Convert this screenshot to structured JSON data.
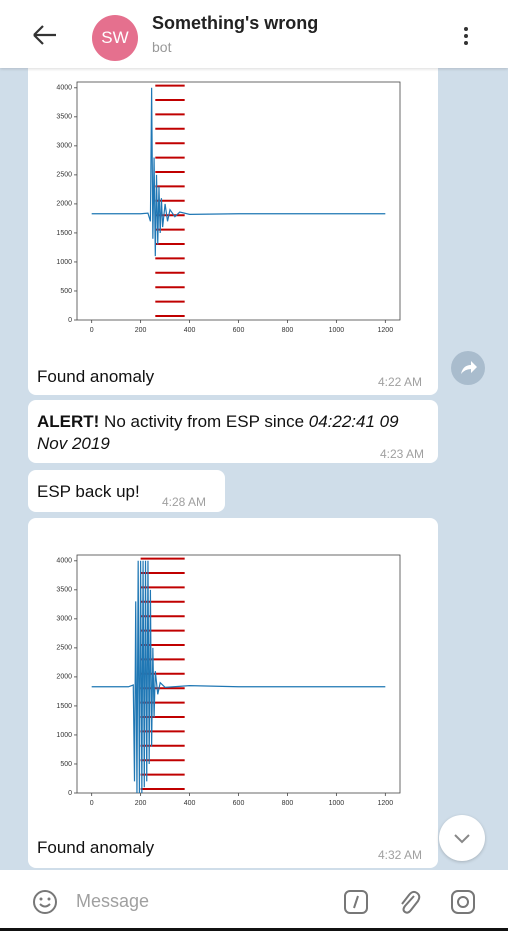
{
  "header": {
    "title": "Something's wrong",
    "subtitle": "bot",
    "avatar": "SW"
  },
  "messages": [
    {
      "chart_data": {
        "type": "line",
        "series": [
          {
            "color": "#1f77b4",
            "x": [
              0,
              100,
              200,
              230,
              240,
              245,
              250,
              255,
              260,
              265,
              270,
              275,
              280,
              285,
              290,
              300,
              310,
              320,
              340,
              360,
              400,
              600,
              800,
              1000,
              1200
            ],
            "values": [
              1830,
              1830,
              1830,
              1840,
              1700,
              4000,
              1400,
              2800,
              1100,
              2500,
              1300,
              2300,
              1500,
              2100,
              1600,
              2000,
              1700,
              1900,
              1780,
              1860,
              1820,
              1830,
              1830,
              1830,
              1830
            ]
          }
        ],
        "highlight": [
          260,
          380
        ],
        "highlight_color": "#c00000",
        "xlim": [
          -60,
          1260
        ],
        "ylim": [
          0,
          4100
        ],
        "xticks": [
          0,
          200,
          400,
          600,
          800,
          1000,
          1200
        ],
        "yticks": [
          0,
          500,
          1000,
          1500,
          2000,
          2500,
          3000,
          3500,
          4000
        ]
      },
      "caption": "Found anomaly",
      "time": "4:22 AM"
    },
    {
      "bold": "ALERT!",
      "text": " No activity from ESP since ",
      "italic": "04:22:41 09 Nov 2019",
      "time": "4:23 AM"
    },
    {
      "text": "ESP back up!",
      "time": "4:28 AM"
    },
    {
      "chart_data": {
        "type": "line",
        "series": [
          {
            "color": "#1f77b4",
            "x": [
              0,
              150,
              170,
              175,
              180,
              185,
              190,
              195,
              200,
              205,
              210,
              215,
              220,
              225,
              230,
              235,
              240,
              245,
              250,
              255,
              260,
              270,
              280,
              300,
              400,
              600,
              800,
              1000,
              1200
            ],
            "values": [
              1830,
              1830,
              1860,
              200,
              3300,
              0,
              4000,
              0,
              4000,
              0,
              4000,
              100,
              4000,
              200,
              4000,
              500,
              3500,
              800,
              2500,
              1300,
              2100,
              1700,
              1900,
              1820,
              1850,
              1830,
              1830,
              1830,
              1830
            ]
          }
        ],
        "highlight": [
          200,
          380
        ],
        "highlight_color": "#c00000",
        "xlim": [
          -60,
          1260
        ],
        "ylim": [
          0,
          4100
        ],
        "xticks": [
          0,
          200,
          400,
          600,
          800,
          1000,
          1200
        ],
        "yticks": [
          0,
          500,
          1000,
          1500,
          2000,
          2500,
          3000,
          3500,
          4000
        ]
      },
      "caption": "Found anomaly",
      "time": "4:32 AM"
    }
  ],
  "input": {
    "placeholder": "Message"
  }
}
